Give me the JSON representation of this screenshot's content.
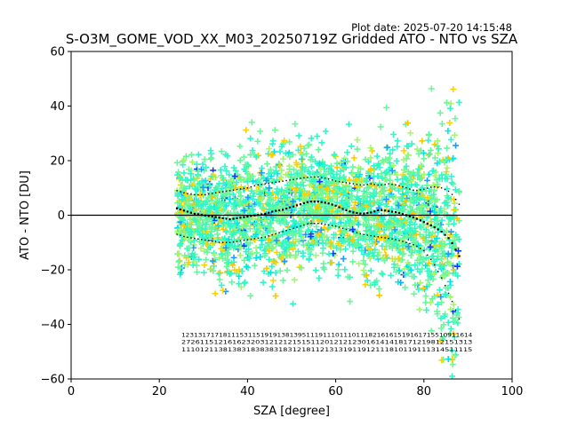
{
  "plot_date": "Plot date: 2025-07-20 14:15:48",
  "chart_data": {
    "type": "scatter",
    "title": "S-O3M_GOME_VOD_XX_M03_20250719Z Gridded ATO - NTO vs SZA",
    "xlabel": "SZA [degree]",
    "ylabel": "ATO - NTO [DU]",
    "xlim": [
      0,
      100
    ],
    "ylim": [
      -60,
      60
    ],
    "x_ticks": [
      0,
      20,
      40,
      60,
      80,
      100
    ],
    "y_ticks": [
      -60,
      -40,
      -20,
      0,
      20,
      40,
      60
    ],
    "x_tick_labels": [
      "0",
      "20",
      "40",
      "60",
      "80",
      "100"
    ],
    "y_tick_labels": [
      "−60",
      "−40",
      "−20",
      "0",
      "20",
      "40",
      "60"
    ],
    "zero_line": 0,
    "grid": false,
    "point_marker": "plus",
    "point_colors": [
      "#2ef7c8",
      "#6af79a",
      "#a3f76a",
      "#ffd000",
      "#f7c800",
      "#1f9bff",
      "#0b3dff",
      "#00e5e5"
    ],
    "scatter_x_range": [
      24,
      88
    ],
    "mean_curve": {
      "name": "mean",
      "x": [
        24,
        26,
        28,
        30,
        32,
        34,
        36,
        38,
        40,
        42,
        44,
        46,
        48,
        50,
        52,
        54,
        56,
        58,
        60,
        62,
        64,
        66,
        68,
        70,
        72,
        74,
        76,
        78,
        80,
        82,
        84,
        86,
        88
      ],
      "y": [
        2.5,
        1.5,
        0.5,
        0.0,
        -0.5,
        -1.0,
        -1.5,
        -1.0,
        -0.5,
        0.0,
        0.5,
        1.5,
        2.0,
        3.0,
        4.0,
        5.0,
        5.0,
        4.5,
        3.5,
        2.0,
        1.0,
        0.5,
        1.0,
        2.0,
        1.5,
        1.0,
        0.0,
        -1.0,
        -2.5,
        -4.0,
        -6.0,
        -9.0,
        -15.0
      ]
    },
    "upper_curve": {
      "name": "mean+std",
      "x": [
        24,
        26,
        28,
        30,
        32,
        34,
        36,
        38,
        40,
        42,
        44,
        46,
        48,
        50,
        52,
        54,
        56,
        58,
        60,
        62,
        64,
        66,
        68,
        70,
        72,
        74,
        76,
        78,
        80,
        82,
        84,
        86,
        88
      ],
      "y": [
        9.0,
        8.0,
        7.5,
        7.5,
        8.0,
        8.5,
        9.0,
        9.5,
        10.0,
        11.0,
        11.5,
        12.0,
        12.5,
        13.0,
        13.5,
        14.0,
        14.0,
        13.5,
        12.5,
        12.0,
        11.5,
        11.0,
        11.5,
        11.0,
        11.5,
        11.0,
        10.0,
        9.0,
        9.5,
        10.5,
        10.0,
        8.5,
        4.0
      ]
    },
    "lower_curve": {
      "name": "mean-std",
      "x": [
        24,
        26,
        28,
        30,
        32,
        34,
        36,
        38,
        40,
        42,
        44,
        46,
        48,
        50,
        52,
        54,
        56,
        58,
        60,
        62,
        64,
        66,
        68,
        70,
        72,
        74,
        76,
        78,
        80,
        82,
        84,
        86,
        88
      ],
      "y": [
        -7.0,
        -8.0,
        -8.5,
        -9.0,
        -9.5,
        -10.0,
        -10.0,
        -9.5,
        -9.0,
        -8.5,
        -8.0,
        -7.0,
        -6.0,
        -5.0,
        -4.0,
        -3.0,
        -3.0,
        -3.5,
        -4.0,
        -5.0,
        -6.0,
        -7.0,
        -7.5,
        -8.0,
        -8.5,
        -9.0,
        -10.0,
        -11.0,
        -13.0,
        -17.0,
        -23.0,
        -30.0,
        -38.0
      ]
    },
    "count_label_rows": [
      "1231317171811153115191913813951119111011101118216161519161715510911614",
      "272611512161623203121212151511201212123016141418171219812151313",
      "111012113813831838383183121811213131911912111810119111314511115"
    ],
    "count_label_x_range": [
      25,
      91
    ]
  }
}
